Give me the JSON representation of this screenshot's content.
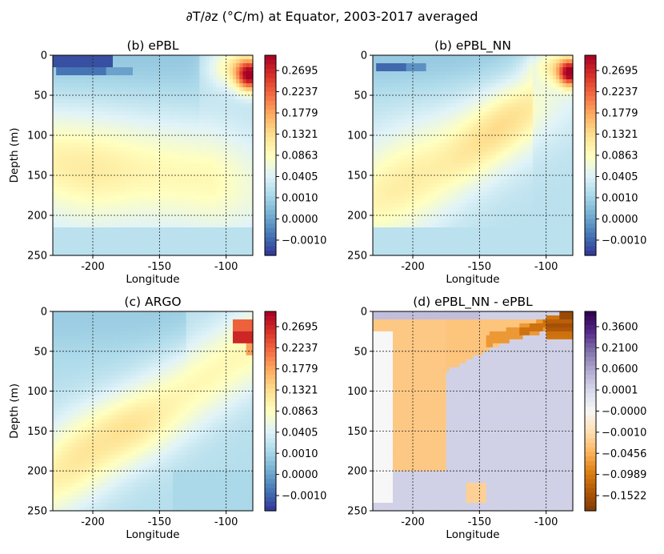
{
  "figure": {
    "title": "∂T/∂z (°C/m) at Equator, 2003-2017 averaged"
  },
  "chart_data": [
    {
      "type": "heatmap",
      "title": "(b) ePBL",
      "xlabel": "Longitude",
      "ylabel": "Depth (m)",
      "xlim": [
        -230,
        -80
      ],
      "ylim": [
        250,
        0
      ],
      "xticks": [
        -200,
        -150,
        -100
      ],
      "xtick_labels": [
        "-200",
        "-150",
        "-100"
      ],
      "yticks": [
        0,
        50,
        100,
        150,
        200,
        250
      ],
      "ytick_labels": [
        "0",
        "50",
        "100",
        "150",
        "200",
        "250"
      ],
      "grid": true,
      "field": "epbl",
      "colorbar": {
        "cmap": "RdYlBu_r",
        "ticks": [
          "0.2695",
          "0.2237",
          "0.1779",
          "0.1321",
          "0.0863",
          "0.0405",
          "0.0010",
          "0.0000",
          "−0.0010"
        ]
      }
    },
    {
      "type": "heatmap",
      "title": "(b) ePBL_NN",
      "xlabel": "Longitude",
      "ylabel": "",
      "xlim": [
        -230,
        -80
      ],
      "ylim": [
        250,
        0
      ],
      "xticks": [
        -200,
        -150,
        -100
      ],
      "xtick_labels": [
        "-200",
        "-150",
        "-100"
      ],
      "yticks": [
        0,
        50,
        100,
        150,
        200,
        250
      ],
      "ytick_labels": [
        "0",
        "50",
        "100",
        "150",
        "200",
        "250"
      ],
      "grid": true,
      "field": "epbl_nn",
      "colorbar": {
        "cmap": "RdYlBu_r",
        "ticks": [
          "0.2695",
          "0.2237",
          "0.1779",
          "0.1321",
          "0.0863",
          "0.0405",
          "0.0010",
          "0.0000",
          "−0.0010"
        ]
      }
    },
    {
      "type": "heatmap",
      "title": "(c) ARGO",
      "xlabel": "Longitude",
      "ylabel": "Depth (m)",
      "xlim": [
        -230,
        -80
      ],
      "ylim": [
        250,
        0
      ],
      "xticks": [
        -200,
        -150,
        -100
      ],
      "xtick_labels": [
        "-200",
        "-150",
        "-100"
      ],
      "yticks": [
        0,
        50,
        100,
        150,
        200,
        250
      ],
      "ytick_labels": [
        "0",
        "50",
        "100",
        "150",
        "200",
        "250"
      ],
      "grid": true,
      "field": "argo",
      "colorbar": {
        "cmap": "RdYlBu_r",
        "ticks": [
          "0.2695",
          "0.2237",
          "0.1779",
          "0.1321",
          "0.0863",
          "0.0405",
          "0.0010",
          "0.0000",
          "−0.0010"
        ]
      }
    },
    {
      "type": "heatmap",
      "title": "(d) ePBL_NN - ePBL",
      "xlabel": "Longitude",
      "ylabel": "",
      "xlim": [
        -230,
        -80
      ],
      "ylim": [
        250,
        0
      ],
      "xticks": [
        -200,
        -150,
        -100
      ],
      "xtick_labels": [
        "-200",
        "-150",
        "-100"
      ],
      "yticks": [
        0,
        50,
        100,
        150,
        200,
        250
      ],
      "ytick_labels": [
        "0",
        "50",
        "100",
        "150",
        "200",
        "250"
      ],
      "grid": true,
      "field": "diff",
      "colorbar": {
        "cmap": "PuOr",
        "ticks": [
          "0.3600",
          "0.2100",
          "0.0600",
          "0.0001",
          "−0.0000",
          "−0.0010",
          "−0.0456",
          "−0.0989",
          "−0.1522"
        ]
      }
    }
  ],
  "colormaps": {
    "RdYlBu_r": [
      "#313695",
      "#4575b4",
      "#74add1",
      "#abd9e9",
      "#e0f3f8",
      "#ffffbf",
      "#fee090",
      "#fdae61",
      "#f46d43",
      "#d73027",
      "#a50026"
    ],
    "PuOr": [
      "#7f3b08",
      "#b35806",
      "#e08214",
      "#fdb863",
      "#fee0b6",
      "#f7f7f7",
      "#d8daeb",
      "#b2abd2",
      "#8073ac",
      "#542788",
      "#2d004b"
    ]
  }
}
